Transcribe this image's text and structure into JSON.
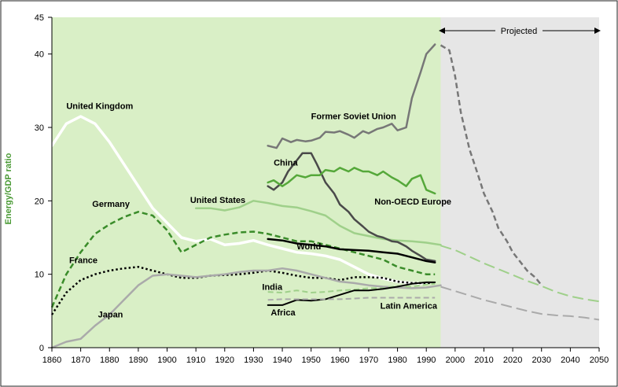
{
  "chart_data": {
    "type": "line",
    "xlabel": "",
    "ylabel": "Energy/GDP ratio",
    "xlim": [
      1860,
      2050
    ],
    "ylim": [
      0,
      45
    ],
    "x_ticks": [
      1860,
      1870,
      1880,
      1890,
      1900,
      1910,
      1920,
      1930,
      1940,
      1950,
      1960,
      1970,
      1980,
      1990,
      2000,
      2010,
      2020,
      2030,
      2040,
      2050
    ],
    "y_ticks": [
      0,
      10,
      20,
      30,
      40,
      45
    ],
    "projected_from": 1995,
    "projected_label": "Projected",
    "colors": {
      "historic_bg": "#d9efc6",
      "projected_bg": "#e6e6e6",
      "white": "#ffffff",
      "dark_green": "#3a8c2a",
      "mid_green": "#55a83a",
      "light_green": "#9fd08a",
      "black": "#000000",
      "dark_gray": "#4a4a4a",
      "gray": "#777777",
      "light_gray": "#aaaaaa",
      "ylabel_green": "#4a9a35"
    },
    "series": [
      {
        "name": "United Kingdom",
        "color": "white",
        "dash": "solid",
        "width": 3.5,
        "x": [
          1860,
          1865,
          1870,
          1875,
          1880,
          1885,
          1890,
          1895,
          1900,
          1905,
          1910,
          1915,
          1920,
          1925,
          1930,
          1935,
          1940,
          1945,
          1950,
          1955,
          1960,
          1965,
          1970,
          1975,
          1980,
          1985,
          1990
        ],
        "y": [
          27.5,
          30.5,
          31.5,
          30.5,
          28,
          25,
          22,
          19,
          17,
          15,
          14.5,
          14.8,
          14,
          14.2,
          14.6,
          14,
          13.5,
          13,
          12.8,
          12.5,
          12,
          11,
          10,
          9.4,
          9,
          8.8,
          8.7
        ]
      },
      {
        "name": "Germany",
        "color": "dark_green",
        "dash": "dash",
        "width": 2.5,
        "x": [
          1860,
          1865,
          1870,
          1875,
          1880,
          1885,
          1890,
          1895,
          1900,
          1905,
          1910,
          1915,
          1920,
          1925,
          1930,
          1935,
          1940,
          1945,
          1950,
          1955,
          1960,
          1965,
          1970,
          1975,
          1980,
          1985,
          1990,
          1993
        ],
        "y": [
          5.5,
          10,
          13,
          15.5,
          16.8,
          17.8,
          18.5,
          18,
          16,
          13,
          14,
          15,
          15.4,
          15.7,
          15.8,
          15.5,
          15,
          14.5,
          14.5,
          14,
          13.5,
          13,
          12.5,
          12,
          11,
          10.5,
          10,
          10
        ]
      },
      {
        "name": "France",
        "color": "black",
        "dash": "dot",
        "width": 2.5,
        "x": [
          1860,
          1865,
          1870,
          1875,
          1880,
          1885,
          1890,
          1895,
          1900,
          1905,
          1910,
          1915,
          1920,
          1925,
          1930,
          1935,
          1940,
          1945,
          1950,
          1955,
          1960,
          1965,
          1970,
          1975,
          1980,
          1985,
          1990,
          1993
        ],
        "y": [
          4.5,
          7.5,
          9.2,
          10,
          10.5,
          10.8,
          11,
          10.5,
          10,
          9.5,
          9.5,
          9.8,
          9.9,
          10,
          10.2,
          10.5,
          10.2,
          9.8,
          9.5,
          9.5,
          9.2,
          9.6,
          9.6,
          9.5,
          9,
          8.8,
          8.8,
          8.8
        ]
      },
      {
        "name": "Japan",
        "color": "light_gray",
        "dash": "solid",
        "width": 2.5,
        "x": [
          1860,
          1865,
          1870,
          1875,
          1880,
          1885,
          1890,
          1895,
          1900,
          1905,
          1910,
          1915,
          1920,
          1925,
          1930,
          1935,
          1940,
          1945,
          1950,
          1955,
          1960,
          1965,
          1970,
          1975,
          1980,
          1985,
          1990,
          1995
        ],
        "y": [
          0,
          0.8,
          1.2,
          3,
          4.5,
          6.5,
          8.5,
          9.8,
          10,
          9.8,
          9.6,
          9.8,
          10,
          10.3,
          10.5,
          10.5,
          10.8,
          10.5,
          10,
          9.5,
          9,
          8.8,
          8.5,
          8.3,
          8.2,
          8.1,
          8.2,
          8.5
        ]
      },
      {
        "name": "United States",
        "color": "light_green",
        "dash": "solid",
        "width": 2.5,
        "x": [
          1910,
          1915,
          1920,
          1925,
          1930,
          1935,
          1940,
          1945,
          1950,
          1955,
          1960,
          1965,
          1970,
          1975,
          1980,
          1985,
          1990,
          1995
        ],
        "y": [
          19,
          19,
          18.7,
          19.1,
          20,
          19.7,
          19.3,
          19.1,
          18.6,
          18,
          16.6,
          15.6,
          15.2,
          14.8,
          14.6,
          14.5,
          14.3,
          14
        ]
      },
      {
        "name": "Former Soviet Union",
        "color": "gray",
        "dash": "solid",
        "width": 2.5,
        "x": [
          1935,
          1938,
          1940,
          1943,
          1945,
          1948,
          1950,
          1953,
          1955,
          1958,
          1960,
          1963,
          1965,
          1968,
          1970,
          1973,
          1975,
          1978,
          1980,
          1983,
          1985,
          1988,
          1990,
          1993
        ],
        "y": [
          27.5,
          27.2,
          28.5,
          28,
          28.3,
          28.1,
          28.2,
          28.6,
          29.4,
          29.3,
          29.5,
          29,
          28.6,
          29.5,
          29.2,
          29.8,
          30,
          30.5,
          29.6,
          30,
          34,
          37.5,
          40,
          41.3
        ]
      },
      {
        "name": "China",
        "color": "dark_gray",
        "dash": "solid",
        "width": 2.5,
        "x": [
          1935,
          1937,
          1940,
          1942,
          1945,
          1947,
          1950,
          1952,
          1955,
          1958,
          1960,
          1963,
          1965,
          1968,
          1970,
          1973,
          1975,
          1978,
          1980,
          1983,
          1985,
          1988,
          1990,
          1993
        ],
        "y": [
          22,
          21.5,
          22.5,
          24,
          25.5,
          26.5,
          26.5,
          25,
          22.5,
          21,
          19.5,
          18.5,
          17.5,
          16.5,
          15.8,
          15.2,
          15,
          14.5,
          14.4,
          13.8,
          13.2,
          12.5,
          12,
          11.8
        ]
      },
      {
        "name": "Non-OECD Europe",
        "color": "mid_green",
        "dash": "solid",
        "width": 2.5,
        "x": [
          1935,
          1937,
          1940,
          1942,
          1945,
          1948,
          1950,
          1953,
          1955,
          1958,
          1960,
          1963,
          1965,
          1968,
          1970,
          1973,
          1975,
          1978,
          1980,
          1983,
          1985,
          1988,
          1990,
          1993
        ],
        "y": [
          22.5,
          22.8,
          22,
          22.5,
          23.5,
          23.2,
          23.5,
          23.5,
          24.2,
          24,
          24.5,
          24,
          24.5,
          24,
          24,
          23.5,
          24,
          23.2,
          22.8,
          22,
          23,
          23.5,
          21.5,
          21
        ]
      },
      {
        "name": "World",
        "color": "black",
        "dash": "solid",
        "width": 2.5,
        "x": [
          1935,
          1940,
          1945,
          1950,
          1955,
          1960,
          1965,
          1970,
          1975,
          1980,
          1985,
          1990,
          1993
        ],
        "y": [
          14.8,
          14.6,
          14.2,
          14,
          13.8,
          13.4,
          13.3,
          13.2,
          13,
          12.8,
          12.3,
          11.8,
          11.6
        ]
      },
      {
        "name": "India",
        "color": "light_green",
        "dash": "dash",
        "width": 2,
        "x": [
          1935,
          1940,
          1945,
          1950,
          1955,
          1960,
          1965,
          1970,
          1975,
          1980,
          1985,
          1990,
          1993
        ],
        "y": [
          7.6,
          7.5,
          7.8,
          7.5,
          7.6,
          7.8,
          7.9,
          8.1,
          8.1,
          8.4,
          8.3,
          8.6,
          8.7
        ]
      },
      {
        "name": "Africa",
        "color": "black",
        "dash": "solid",
        "width": 2,
        "x": [
          1935,
          1940,
          1945,
          1950,
          1955,
          1960,
          1965,
          1970,
          1975,
          1980,
          1985,
          1990,
          1993
        ],
        "y": [
          5.8,
          5.8,
          6.5,
          6.4,
          6.6,
          7.2,
          7.8,
          7.8,
          8,
          8.3,
          8.7,
          8.9,
          8.9
        ]
      },
      {
        "name": "Latin America",
        "color": "light_gray",
        "dash": "dash",
        "width": 2,
        "x": [
          1935,
          1940,
          1945,
          1950,
          1955,
          1960,
          1965,
          1970,
          1975,
          1980,
          1985,
          1990,
          1993
        ],
        "y": [
          6.5,
          6.6,
          6.6,
          6.6,
          6.6,
          6.6,
          6.7,
          6.8,
          6.8,
          6.8,
          6.8,
          6.8,
          6.8
        ]
      }
    ],
    "projections": [
      {
        "of": "Former Soviet Union",
        "color": "gray",
        "dash": "dash",
        "width": 2.5,
        "x": [
          1995,
          1998,
          2000,
          2002,
          2005,
          2008,
          2010,
          2013,
          2015,
          2018,
          2020,
          2023,
          2025,
          2028,
          2030
        ],
        "y": [
          41.2,
          40.5,
          37,
          32,
          27,
          23.5,
          21,
          18.5,
          16.3,
          14.5,
          13,
          11.5,
          10.5,
          9.5,
          8.5
        ]
      },
      {
        "of": "United States",
        "color": "light_green",
        "dash": "longdash",
        "width": 2,
        "x": [
          1995,
          2000,
          2005,
          2010,
          2015,
          2020,
          2025,
          2030,
          2035,
          2040,
          2045,
          2050
        ],
        "y": [
          13.9,
          13.3,
          12.4,
          11.5,
          10.7,
          9.9,
          9.1,
          8.4,
          7.6,
          7,
          6.6,
          6.3
        ]
      },
      {
        "of": "Japan",
        "color": "light_gray",
        "dash": "longdash",
        "width": 2,
        "x": [
          1995,
          2000,
          2005,
          2010,
          2015,
          2020,
          2025,
          2030,
          2035,
          2040,
          2045,
          2050
        ],
        "y": [
          8.3,
          7.7,
          7.1,
          6.5,
          6,
          5.5,
          5,
          4.6,
          4.4,
          4.3,
          4.1,
          3.8
        ]
      }
    ],
    "labels": [
      {
        "text": "United Kingdom",
        "x": 1865,
        "y": 32.5
      },
      {
        "text": "Germany",
        "x": 1874,
        "y": 19.2
      },
      {
        "text": "France",
        "x": 1866,
        "y": 11.5
      },
      {
        "text": "Japan",
        "x": 1876,
        "y": 4.1
      },
      {
        "text": "United States",
        "x": 1908,
        "y": 19.7
      },
      {
        "text": "Former Soviet Union",
        "x": 1950,
        "y": 31.1
      },
      {
        "text": "China",
        "x": 1937,
        "y": 24.8
      },
      {
        "text": "Non-OECD Europe",
        "x": 1972,
        "y": 19.5
      },
      {
        "text": "World",
        "x": 1945,
        "y": 13.4
      },
      {
        "text": "India",
        "x": 1933,
        "y": 7.9
      },
      {
        "text": "Africa",
        "x": 1936,
        "y": 4.4
      },
      {
        "text": "Latin America",
        "x": 1974,
        "y": 5.3
      }
    ]
  }
}
